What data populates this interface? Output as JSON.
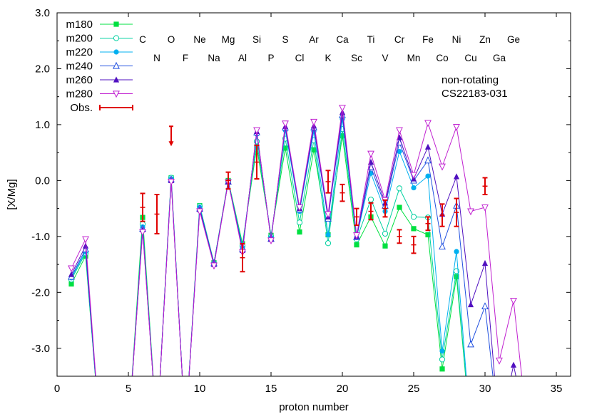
{
  "chart_data": {
    "type": "line",
    "xlabel": "proton number",
    "ylabel": "[X/Mg]",
    "xlim": [
      0,
      36
    ],
    "ylim": [
      -3.5,
      3.0
    ],
    "x_ticks": [
      0,
      5,
      10,
      15,
      20,
      25,
      30,
      35
    ],
    "x_tick_labels": [
      "0",
      "5",
      "10",
      "15",
      "20",
      "25",
      "30",
      "35"
    ],
    "y_ticks": [
      -3.0,
      -2.0,
      -1.0,
      0.0,
      1.0,
      2.0,
      3.0
    ],
    "y_tick_labels": [
      "-3.0",
      "-2.0",
      "-1.0",
      "0.0",
      "1.0",
      "2.0",
      "3.0"
    ],
    "grid": false,
    "legend_position": "top-left",
    "annotations": [
      "non-rotating",
      "CS22183-031"
    ],
    "element_labels_row1": [
      {
        "z": 6,
        "label": "C"
      },
      {
        "z": 8,
        "label": "O"
      },
      {
        "z": 10,
        "label": "Ne"
      },
      {
        "z": 12,
        "label": "Mg"
      },
      {
        "z": 14,
        "label": "Si"
      },
      {
        "z": 16,
        "label": "S"
      },
      {
        "z": 18,
        "label": "Ar"
      },
      {
        "z": 20,
        "label": "Ca"
      },
      {
        "z": 22,
        "label": "Ti"
      },
      {
        "z": 24,
        "label": "Cr"
      },
      {
        "z": 26,
        "label": "Fe"
      },
      {
        "z": 28,
        "label": "Ni"
      },
      {
        "z": 30,
        "label": "Zn"
      },
      {
        "z": 32,
        "label": "Ge"
      }
    ],
    "element_labels_row2": [
      {
        "z": 7,
        "label": "N"
      },
      {
        "z": 9,
        "label": "F"
      },
      {
        "z": 11,
        "label": "Na"
      },
      {
        "z": 13,
        "label": "Al"
      },
      {
        "z": 15,
        "label": "P"
      },
      {
        "z": 17,
        "label": "Cl"
      },
      {
        "z": 19,
        "label": "K"
      },
      {
        "z": 21,
        "label": "Sc"
      },
      {
        "z": 23,
        "label": "V"
      },
      {
        "z": 25,
        "label": "Mn"
      },
      {
        "z": 27,
        "label": "Co"
      },
      {
        "z": 29,
        "label": "Cu"
      },
      {
        "z": 31,
        "label": "Ga"
      }
    ],
    "series": [
      {
        "name": "m180",
        "color": "#00e040",
        "marker": "square-filled",
        "points": [
          [
            1,
            -1.85
          ],
          [
            2,
            -1.35
          ],
          [
            3,
            -4.5
          ],
          [
            5,
            -4.5
          ],
          [
            6,
            -0.66
          ],
          [
            7,
            -4.5
          ],
          [
            8,
            0.05
          ],
          [
            9,
            -4.5
          ],
          [
            10,
            -0.45
          ],
          [
            11,
            -1.47
          ],
          [
            12,
            0.0
          ],
          [
            13,
            -1.13
          ],
          [
            14,
            0.6
          ],
          [
            15,
            -0.98
          ],
          [
            16,
            0.58
          ],
          [
            17,
            -0.92
          ],
          [
            18,
            0.55
          ],
          [
            19,
            -0.97
          ],
          [
            20,
            0.8
          ],
          [
            21,
            -1.15
          ],
          [
            22,
            -0.65
          ],
          [
            23,
            -1.17
          ],
          [
            24,
            -0.48
          ],
          [
            25,
            -0.86
          ],
          [
            26,
            -0.97
          ],
          [
            27,
            -3.37
          ],
          [
            28,
            -1.72
          ],
          [
            29,
            -4.5
          ]
        ]
      },
      {
        "name": "m200",
        "color": "#00d0a0",
        "marker": "circle-open",
        "points": [
          [
            1,
            -1.77
          ],
          [
            2,
            -1.3
          ],
          [
            3,
            -4.5
          ],
          [
            5,
            -4.5
          ],
          [
            6,
            -0.78
          ],
          [
            7,
            -4.5
          ],
          [
            8,
            0.05
          ],
          [
            9,
            -4.5
          ],
          [
            10,
            -0.46
          ],
          [
            11,
            -1.48
          ],
          [
            12,
            -0.01
          ],
          [
            13,
            -1.17
          ],
          [
            14,
            0.7
          ],
          [
            15,
            -1.0
          ],
          [
            16,
            0.75
          ],
          [
            17,
            -0.75
          ],
          [
            18,
            0.72
          ],
          [
            19,
            -1.12
          ],
          [
            20,
            0.92
          ],
          [
            21,
            -1.05
          ],
          [
            22,
            -0.34
          ],
          [
            23,
            -0.95
          ],
          [
            24,
            -0.14
          ],
          [
            25,
            -0.65
          ],
          [
            26,
            -0.66
          ],
          [
            27,
            -3.2
          ],
          [
            28,
            -1.62
          ],
          [
            29,
            -4.5
          ]
        ]
      },
      {
        "name": "m220",
        "color": "#00b0f0",
        "marker": "circle-filled",
        "points": [
          [
            1,
            -1.74
          ],
          [
            2,
            -1.27
          ],
          [
            3,
            -4.5
          ],
          [
            5,
            -4.5
          ],
          [
            6,
            -0.83
          ],
          [
            7,
            -4.5
          ],
          [
            8,
            0.03
          ],
          [
            9,
            -4.5
          ],
          [
            10,
            -0.48
          ],
          [
            11,
            -1.48
          ],
          [
            12,
            -0.02
          ],
          [
            13,
            -1.2
          ],
          [
            14,
            0.83
          ],
          [
            15,
            -1.02
          ],
          [
            16,
            0.9
          ],
          [
            17,
            -0.55
          ],
          [
            18,
            0.88
          ],
          [
            19,
            -0.97
          ],
          [
            20,
            1.1
          ],
          [
            21,
            -1.02
          ],
          [
            22,
            0.13
          ],
          [
            23,
            -0.55
          ],
          [
            24,
            0.52
          ],
          [
            25,
            -0.13
          ],
          [
            26,
            0.08
          ],
          [
            27,
            -3.05
          ],
          [
            28,
            -1.27
          ],
          [
            29,
            -4.5
          ]
        ]
      },
      {
        "name": "m240",
        "color": "#2050e0",
        "marker": "triangle-open",
        "points": [
          [
            1,
            -1.72
          ],
          [
            2,
            -1.23
          ],
          [
            3,
            -4.5
          ],
          [
            5,
            -4.5
          ],
          [
            6,
            -0.86
          ],
          [
            7,
            -4.5
          ],
          [
            8,
            0.02
          ],
          [
            9,
            -4.5
          ],
          [
            10,
            -0.5
          ],
          [
            11,
            -1.48
          ],
          [
            12,
            -0.02
          ],
          [
            13,
            -1.22
          ],
          [
            14,
            0.86
          ],
          [
            15,
            -1.04
          ],
          [
            16,
            0.95
          ],
          [
            17,
            -0.52
          ],
          [
            18,
            0.95
          ],
          [
            19,
            -0.68
          ],
          [
            20,
            1.17
          ],
          [
            21,
            -1.01
          ],
          [
            22,
            0.24
          ],
          [
            23,
            -0.45
          ],
          [
            24,
            0.68
          ],
          [
            25,
            0.0
          ],
          [
            26,
            0.36
          ],
          [
            27,
            -1.18
          ],
          [
            28,
            -0.45
          ],
          [
            29,
            -2.93
          ],
          [
            30,
            -2.25
          ],
          [
            31,
            -4.5
          ]
        ]
      },
      {
        "name": "m260",
        "color": "#5010c0",
        "marker": "triangle-filled",
        "points": [
          [
            1,
            -1.68
          ],
          [
            2,
            -1.17
          ],
          [
            3,
            -4.5
          ],
          [
            5,
            -4.5
          ],
          [
            6,
            -0.88
          ],
          [
            7,
            -4.5
          ],
          [
            8,
            0.0
          ],
          [
            9,
            -4.5
          ],
          [
            10,
            -0.52
          ],
          [
            11,
            -1.5
          ],
          [
            12,
            -0.02
          ],
          [
            13,
            -1.25
          ],
          [
            14,
            0.88
          ],
          [
            15,
            -1.05
          ],
          [
            16,
            0.97
          ],
          [
            17,
            -0.5
          ],
          [
            18,
            0.98
          ],
          [
            19,
            -0.65
          ],
          [
            20,
            1.22
          ],
          [
            21,
            -1.0
          ],
          [
            22,
            0.33
          ],
          [
            23,
            -0.4
          ],
          [
            24,
            0.77
          ],
          [
            25,
            0.03
          ],
          [
            26,
            0.6
          ],
          [
            27,
            -0.6
          ],
          [
            28,
            0.07
          ],
          [
            29,
            -2.22
          ],
          [
            30,
            -1.48
          ],
          [
            31,
            -4.5
          ],
          [
            32,
            -3.3
          ],
          [
            33,
            -4.5
          ]
        ]
      },
      {
        "name": "m280",
        "color": "#c020d0",
        "marker": "triangle-down-open",
        "points": [
          [
            1,
            -1.57
          ],
          [
            2,
            -1.05
          ],
          [
            3,
            -4.5
          ],
          [
            5,
            -4.5
          ],
          [
            6,
            -0.92
          ],
          [
            7,
            -4.5
          ],
          [
            8,
            -0.02
          ],
          [
            9,
            -4.5
          ],
          [
            10,
            -0.55
          ],
          [
            11,
            -1.52
          ],
          [
            12,
            -0.03
          ],
          [
            13,
            -1.28
          ],
          [
            14,
            0.9
          ],
          [
            15,
            -1.07
          ],
          [
            16,
            1.02
          ],
          [
            17,
            -0.48
          ],
          [
            18,
            1.05
          ],
          [
            19,
            -0.6
          ],
          [
            20,
            1.3
          ],
          [
            21,
            -0.98
          ],
          [
            22,
            0.48
          ],
          [
            23,
            -0.35
          ],
          [
            24,
            0.9
          ],
          [
            25,
            0.1
          ],
          [
            26,
            1.03
          ],
          [
            27,
            0.25
          ],
          [
            28,
            0.96
          ],
          [
            29,
            -0.55
          ],
          [
            30,
            -0.48
          ],
          [
            31,
            -3.22
          ],
          [
            32,
            -2.15
          ],
          [
            33,
            -4.5
          ]
        ]
      }
    ],
    "observations": {
      "name": "Obs.",
      "color": "#e00000",
      "points": [
        {
          "x": 6,
          "y": -0.48,
          "err": 0.25
        },
        {
          "x": 7,
          "y": -0.6,
          "err": 0.35
        },
        {
          "x": 8,
          "y": 0.97,
          "upper_limit": true
        },
        {
          "x": 12,
          "y": 0.0,
          "err": 0.15
        },
        {
          "x": 13,
          "y": -1.38,
          "err": 0.25
        },
        {
          "x": 14,
          "y": 0.33,
          "err": 0.3
        },
        {
          "x": 19,
          "y": -0.02,
          "err": 0.2
        },
        {
          "x": 20,
          "y": -0.22,
          "err": 0.15
        },
        {
          "x": 21,
          "y": -0.65,
          "err": 0.15
        },
        {
          "x": 22,
          "y": -0.55,
          "err": 0.15
        },
        {
          "x": 23,
          "y": -0.5,
          "err": 0.15
        },
        {
          "x": 24,
          "y": -1.0,
          "err": 0.12
        },
        {
          "x": 25,
          "y": -1.15,
          "err": 0.15
        },
        {
          "x": 26,
          "y": -0.77,
          "err": 0.12
        },
        {
          "x": 27,
          "y": -0.62,
          "err": 0.2
        },
        {
          "x": 28,
          "y": -0.57,
          "err": 0.25
        },
        {
          "x": 30,
          "y": -0.1,
          "err": 0.15
        }
      ]
    }
  }
}
